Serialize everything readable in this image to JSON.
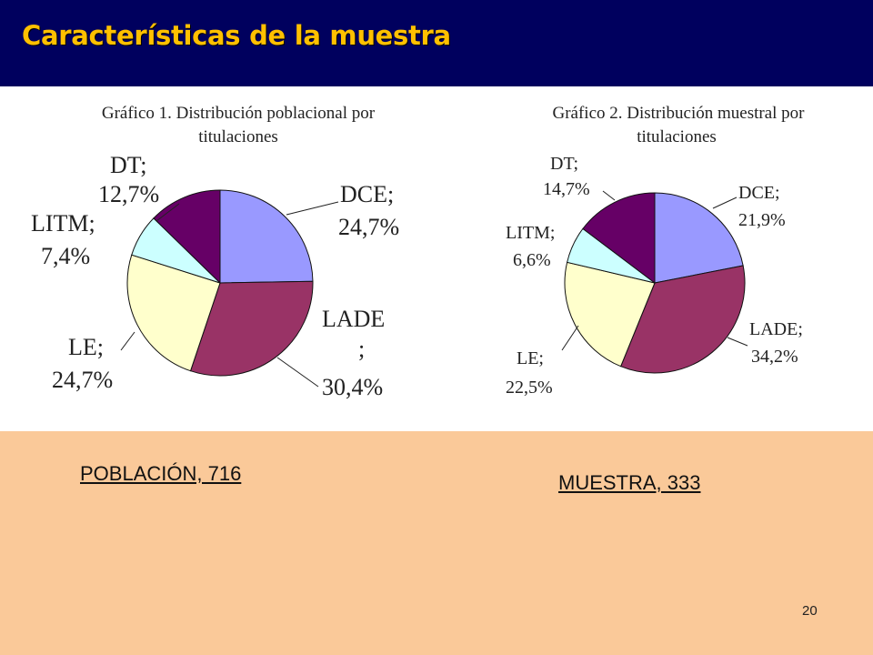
{
  "header": {
    "title": "Características de la muestra"
  },
  "footer": {
    "population_label": "POBLACIÓN, 716",
    "sample_label": "MUESTRA, 333",
    "page_number": "20"
  },
  "colors": {
    "DCE": "#9999ff",
    "LADE": "#993366",
    "LE": "#ffffcc",
    "LITM": "#ccffff",
    "DT": "#660066"
  },
  "chart_data": [
    {
      "type": "pie",
      "title": "Gráfico 1. Distribución poblacional por titulaciones",
      "title_lines": [
        "Gráfico 1. Distribución poblacional por",
        "titulaciones"
      ],
      "categories": [
        "DCE",
        "LADE",
        "LE",
        "LITM",
        "DT"
      ],
      "values": [
        24.7,
        30.4,
        24.7,
        7.4,
        12.7
      ],
      "labels": [
        {
          "name": "DCE;",
          "value": "24,7%"
        },
        {
          "name": "LADE",
          "extra": ";",
          "value": "30,4%"
        },
        {
          "name": "LE;",
          "value": "24,7%"
        },
        {
          "name": "LITM;",
          "value": "7,4%"
        },
        {
          "name": "DT;",
          "value": "12,7%"
        }
      ]
    },
    {
      "type": "pie",
      "title": "Gráfico 2. Distribución muestral por titulaciones",
      "title_lines": [
        "Gráfico 2. Distribución muestral por",
        "titulaciones"
      ],
      "categories": [
        "DCE",
        "LADE",
        "LE",
        "LITM",
        "DT"
      ],
      "values": [
        21.9,
        34.2,
        22.5,
        6.6,
        14.7
      ],
      "labels": [
        {
          "name": "DCE;",
          "value": "21,9%"
        },
        {
          "name": "LADE;",
          "value": "34,2%"
        },
        {
          "name": "LE;",
          "value": "22,5%"
        },
        {
          "name": "LITM;",
          "value": "6,6%"
        },
        {
          "name": "DT;",
          "value": "14,7%"
        }
      ]
    }
  ]
}
